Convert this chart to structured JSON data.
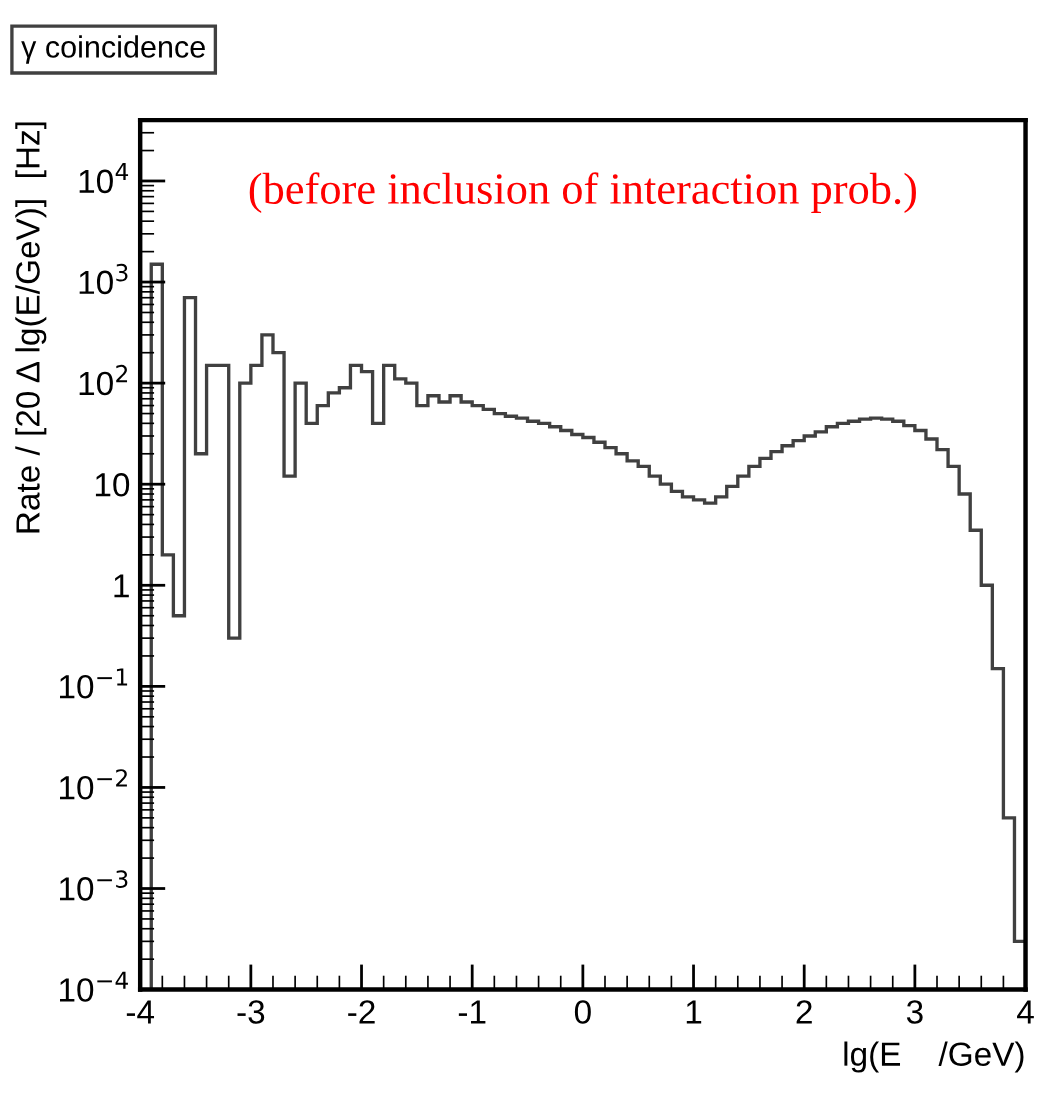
{
  "chart_data": {
    "type": "histogram",
    "title": "γ coincidence",
    "xlabel": "lg(E    /GeV)",
    "ylabel": "Rate / [20 Δ lg(E/GeV)]  [Hz]",
    "annotations": [
      "(before inclusion of interaction prob.)"
    ],
    "log": "y",
    "color": "#404040",
    "xlim": [
      -4,
      4
    ],
    "xticks": [
      -4,
      -3,
      -2,
      -1,
      0,
      1,
      2,
      3,
      4
    ],
    "ylim": [
      0.0001,
      40000
    ],
    "yticks": [
      {
        "value": 0.0001,
        "label": "10$^{−4}$"
      },
      {
        "value": 0.001,
        "label": "10$^{−3}$"
      },
      {
        "value": 0.01,
        "label": "10$^{−2}$"
      },
      {
        "value": 0.1,
        "label": "10$^{−1}$"
      },
      1,
      10,
      {
        "value": 100,
        "label": "10$^{2}$"
      },
      {
        "value": 1000,
        "label": "10$^{3}$"
      },
      {
        "value": 10000,
        "label": "10$^{4}$"
      }
    ],
    "bins": [
      -3.9,
      -3.8,
      -3.7,
      -3.6,
      -3.5,
      -3.4,
      -3.3,
      -3.2,
      -3.1,
      -3.0,
      -2.9,
      -2.8,
      -2.7,
      -2.6,
      -2.5,
      -2.4,
      -2.3,
      -2.2,
      -2.1,
      -2.0,
      -1.9,
      -1.8,
      -1.7,
      -1.6,
      -1.5,
      -1.4,
      -1.3,
      -1.2,
      -1.1,
      -1.0,
      -0.9,
      -0.8,
      -0.7,
      -0.6,
      -0.5,
      -0.4,
      -0.3,
      -0.2,
      -0.1,
      0.0,
      0.1,
      0.2,
      0.3,
      0.4,
      0.5,
      0.6,
      0.7,
      0.8,
      0.9,
      1.0,
      1.1,
      1.2,
      1.3,
      1.4,
      1.5,
      1.6,
      1.7,
      1.8,
      1.9,
      2.0,
      2.1,
      2.2,
      2.3,
      2.4,
      2.5,
      2.6,
      2.7,
      2.8,
      2.9,
      3.0,
      3.1,
      3.2,
      3.3,
      3.4,
      3.5,
      3.6,
      3.7,
      3.8,
      3.9,
      4.0
    ],
    "values": [
      1500,
      2,
      0.5,
      700,
      20,
      150,
      150,
      0.3,
      100,
      150,
      300,
      200,
      12,
      100,
      40,
      60,
      80,
      90,
      150,
      130,
      40,
      150,
      110,
      100,
      60,
      75,
      65,
      75,
      65,
      60,
      55,
      50,
      47,
      45,
      42,
      40,
      37,
      34,
      31,
      29,
      26,
      23,
      20,
      17,
      15,
      12,
      10,
      8.5,
      7.5,
      7,
      6.5,
      7.5,
      9.5,
      12,
      15,
      18,
      21,
      24,
      27,
      30,
      33,
      37,
      40,
      42,
      44,
      45,
      44,
      42,
      38,
      34,
      28,
      22,
      15,
      8,
      3.5,
      1,
      0.15,
      0.005,
      0.0003
    ]
  }
}
